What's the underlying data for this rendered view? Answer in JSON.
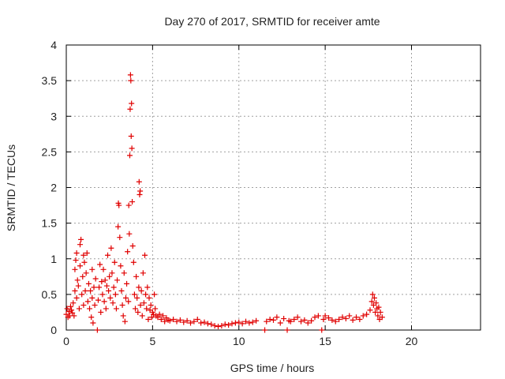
{
  "chart_data": {
    "type": "scatter",
    "title": "Day 270 of 2017, SRMTID for receiver amte",
    "xlabel": "GPS time / hours",
    "ylabel": "SRMTID / TECUs",
    "xlim": [
      0,
      24
    ],
    "ylim": [
      0,
      4
    ],
    "xticks": [
      0,
      5,
      10,
      15,
      20
    ],
    "xtick_labels": [
      "0",
      "5",
      "10",
      "15",
      "20"
    ],
    "yticks": [
      0,
      0.5,
      1,
      1.5,
      2,
      2.5,
      3,
      3.5,
      4
    ],
    "ytick_labels": [
      "0",
      "0.5",
      "1",
      "1.5",
      "2",
      "2.5",
      "3",
      "3.5",
      "4"
    ],
    "grid": true,
    "marker": "+",
    "series": [
      {
        "name": "SRMTID",
        "color": "#e00000",
        "points": [
          [
            0.0,
            0.22
          ],
          [
            0.05,
            0.3
          ],
          [
            0.1,
            0.18
          ],
          [
            0.15,
            0.26
          ],
          [
            0.2,
            0.2
          ],
          [
            0.25,
            0.33
          ],
          [
            0.3,
            0.28
          ],
          [
            0.35,
            0.24
          ],
          [
            0.4,
            0.38
          ],
          [
            0.45,
            0.2
          ],
          [
            0.5,
            0.55
          ],
          [
            0.5,
            0.85
          ],
          [
            0.55,
            0.98
          ],
          [
            0.6,
            0.45
          ],
          [
            0.6,
            1.08
          ],
          [
            0.65,
            0.7
          ],
          [
            0.7,
            0.62
          ],
          [
            0.75,
            0.3
          ],
          [
            0.8,
            0.9
          ],
          [
            0.8,
            1.2
          ],
          [
            0.85,
            1.27
          ],
          [
            0.9,
            0.5
          ],
          [
            0.95,
            0.75
          ],
          [
            1.0,
            0.35
          ],
          [
            1.0,
            1.05
          ],
          [
            1.05,
            0.95
          ],
          [
            1.1,
            0.55
          ],
          [
            1.15,
            0.8
          ],
          [
            1.2,
            1.08
          ],
          [
            1.25,
            0.4
          ],
          [
            1.3,
            0.65
          ],
          [
            1.35,
            0.3
          ],
          [
            1.4,
            0.55
          ],
          [
            1.45,
            0.18
          ],
          [
            1.5,
            0.45
          ],
          [
            1.5,
            0.85
          ],
          [
            1.55,
            0.1
          ],
          [
            1.6,
            0.6
          ],
          [
            1.65,
            0.35
          ],
          [
            1.7,
            0.72
          ],
          [
            1.8,
            0.0
          ],
          [
            1.85,
            0.42
          ],
          [
            1.9,
            0.6
          ],
          [
            1.95,
            0.92
          ],
          [
            2.0,
            0.25
          ],
          [
            2.05,
            0.68
          ],
          [
            2.1,
            0.5
          ],
          [
            2.15,
            0.85
          ],
          [
            2.2,
            0.4
          ],
          [
            2.25,
            0.7
          ],
          [
            2.3,
            0.3
          ],
          [
            2.35,
            0.62
          ],
          [
            2.4,
            1.05
          ],
          [
            2.45,
            0.55
          ],
          [
            2.5,
            0.75
          ],
          [
            2.55,
            0.45
          ],
          [
            2.6,
            1.15
          ],
          [
            2.65,
            0.8
          ],
          [
            2.7,
            0.38
          ],
          [
            2.75,
            0.6
          ],
          [
            2.8,
            0.95
          ],
          [
            2.85,
            0.5
          ],
          [
            2.9,
            0.3
          ],
          [
            2.95,
            0.7
          ],
          [
            3.0,
            1.45
          ],
          [
            3.02,
            1.78
          ],
          [
            3.05,
            1.75
          ],
          [
            3.1,
            1.3
          ],
          [
            3.15,
            0.9
          ],
          [
            3.2,
            0.55
          ],
          [
            3.25,
            0.35
          ],
          [
            3.3,
            0.2
          ],
          [
            3.35,
            0.8
          ],
          [
            3.4,
            0.12
          ],
          [
            3.45,
            0.45
          ],
          [
            3.5,
            0.65
          ],
          [
            3.55,
            1.1
          ],
          [
            3.6,
            0.4
          ],
          [
            3.62,
            1.75
          ],
          [
            3.65,
            1.35
          ],
          [
            3.68,
            2.45
          ],
          [
            3.7,
            3.1
          ],
          [
            3.72,
            3.58
          ],
          [
            3.74,
            3.5
          ],
          [
            3.76,
            2.72
          ],
          [
            3.78,
            3.18
          ],
          [
            3.8,
            2.55
          ],
          [
            3.82,
            1.8
          ],
          [
            3.85,
            1.18
          ],
          [
            3.9,
            0.95
          ],
          [
            3.95,
            0.5
          ],
          [
            4.0,
            0.3
          ],
          [
            4.05,
            0.75
          ],
          [
            4.1,
            0.45
          ],
          [
            4.15,
            0.25
          ],
          [
            4.2,
            0.6
          ],
          [
            4.22,
            2.08
          ],
          [
            4.25,
            1.9
          ],
          [
            4.28,
            1.95
          ],
          [
            4.3,
            0.35
          ],
          [
            4.35,
            0.55
          ],
          [
            4.4,
            0.2
          ],
          [
            4.45,
            0.8
          ],
          [
            4.5,
            0.38
          ],
          [
            4.55,
            1.05
          ],
          [
            4.6,
            0.5
          ],
          [
            4.65,
            0.3
          ],
          [
            4.7,
            0.6
          ],
          [
            4.75,
            0.15
          ],
          [
            4.8,
            0.45
          ],
          [
            4.85,
            0.28
          ],
          [
            4.9,
            0.35
          ],
          [
            4.95,
            0.18
          ],
          [
            5.0,
            0.25
          ],
          [
            5.05,
            0.22
          ],
          [
            5.1,
            0.5
          ],
          [
            5.15,
            0.3
          ],
          [
            5.2,
            0.2
          ],
          [
            5.3,
            0.18
          ],
          [
            5.4,
            0.22
          ],
          [
            5.5,
            0.15
          ],
          [
            5.6,
            0.2
          ],
          [
            5.7,
            0.12
          ],
          [
            5.8,
            0.17
          ],
          [
            5.9,
            0.14
          ],
          [
            6.0,
            0.13
          ],
          [
            6.2,
            0.15
          ],
          [
            6.4,
            0.12
          ],
          [
            6.6,
            0.14
          ],
          [
            6.8,
            0.11
          ],
          [
            7.0,
            0.13
          ],
          [
            7.2,
            0.1
          ],
          [
            7.4,
            0.12
          ],
          [
            7.6,
            0.15
          ],
          [
            7.8,
            0.1
          ],
          [
            8.0,
            0.11
          ],
          [
            8.2,
            0.09
          ],
          [
            8.4,
            0.08
          ],
          [
            8.6,
            0.06
          ],
          [
            8.8,
            0.05
          ],
          [
            9.0,
            0.06
          ],
          [
            9.2,
            0.08
          ],
          [
            9.4,
            0.07
          ],
          [
            9.6,
            0.09
          ],
          [
            9.8,
            0.1
          ],
          [
            10.0,
            0.11
          ],
          [
            10.2,
            0.09
          ],
          [
            10.4,
            0.12
          ],
          [
            10.6,
            0.1
          ],
          [
            10.8,
            0.11
          ],
          [
            11.0,
            0.13
          ],
          [
            11.5,
            0.0
          ],
          [
            11.6,
            0.12
          ],
          [
            11.8,
            0.15
          ],
          [
            12.0,
            0.14
          ],
          [
            12.2,
            0.18
          ],
          [
            12.4,
            0.1
          ],
          [
            12.6,
            0.16
          ],
          [
            12.8,
            0.0
          ],
          [
            12.9,
            0.13
          ],
          [
            13.0,
            0.12
          ],
          [
            13.2,
            0.15
          ],
          [
            13.4,
            0.18
          ],
          [
            13.6,
            0.12
          ],
          [
            13.8,
            0.14
          ],
          [
            14.0,
            0.1
          ],
          [
            14.2,
            0.13
          ],
          [
            14.4,
            0.18
          ],
          [
            14.6,
            0.2
          ],
          [
            14.8,
            0.0
          ],
          [
            14.9,
            0.15
          ],
          [
            15.0,
            0.2
          ],
          [
            15.2,
            0.17
          ],
          [
            15.4,
            0.14
          ],
          [
            15.6,
            0.12
          ],
          [
            15.8,
            0.15
          ],
          [
            16.0,
            0.18
          ],
          [
            16.2,
            0.16
          ],
          [
            16.4,
            0.2
          ],
          [
            16.6,
            0.14
          ],
          [
            16.8,
            0.18
          ],
          [
            17.0,
            0.15
          ],
          [
            17.2,
            0.2
          ],
          [
            17.4,
            0.22
          ],
          [
            17.6,
            0.28
          ],
          [
            17.7,
            0.4
          ],
          [
            17.75,
            0.5
          ],
          [
            17.8,
            0.35
          ],
          [
            17.85,
            0.45
          ],
          [
            17.9,
            0.25
          ],
          [
            17.95,
            0.38
          ],
          [
            18.0,
            0.3
          ],
          [
            18.05,
            0.2
          ],
          [
            18.1,
            0.32
          ],
          [
            18.15,
            0.15
          ],
          [
            18.2,
            0.25
          ],
          [
            18.3,
            0.18
          ]
        ]
      }
    ]
  }
}
